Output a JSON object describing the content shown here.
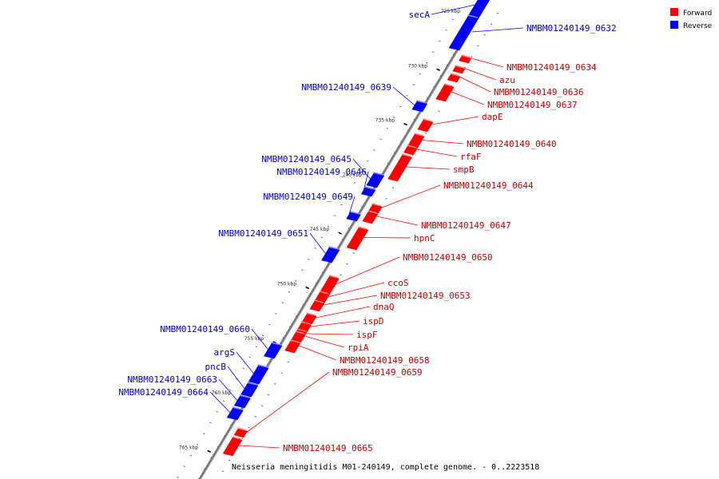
{
  "caption": "Neisseria meningitidis M01-240149, complete genome. - 0..2223518",
  "legend": [
    {
      "label": "Forward",
      "color": "#ff0000"
    },
    {
      "label": "Reverse",
      "color": "#0000ff"
    }
  ],
  "colors": {
    "forward": "#ff0000",
    "reverse": "#0000ff",
    "backbone": "#7a7a7a"
  },
  "ticks": [
    "725 kbp",
    "730 kbp",
    "735 kbp",
    "740 kbp",
    "745 kbp",
    "750 kbp",
    "755 kbp",
    "760 kbp",
    "765 kbp"
  ],
  "forward_genes": [
    "NMBM01240149_0634",
    "azu",
    "NMBM01240149_0636",
    "NMBM01240149_0637",
    "dapE",
    "NMBM01240149_0640",
    "rfaF",
    "smpB",
    "NMBM01240149_0644",
    "NMBM01240149_0647",
    "hpnC",
    "NMBM01240149_0650",
    "ccoS",
    "NMBM01240149_0653",
    "dnaQ",
    "ispD",
    "ispF",
    "rpiA",
    "NMBM01240149_0658",
    "NMBM01240149_0659",
    "NMBM01240149_0665"
  ],
  "reverse_genes": [
    "secA",
    "NMBM01240149_0632",
    "NMBM01240149_0639",
    "NMBM01240149_0645",
    "NMBM01240149_0646",
    "NMBM01240149_0649",
    "NMBM01240149_0651",
    "NMBM01240149_0660",
    "argS",
    "pncB",
    "NMBM01240149_0663",
    "NMBM01240149_0664"
  ]
}
